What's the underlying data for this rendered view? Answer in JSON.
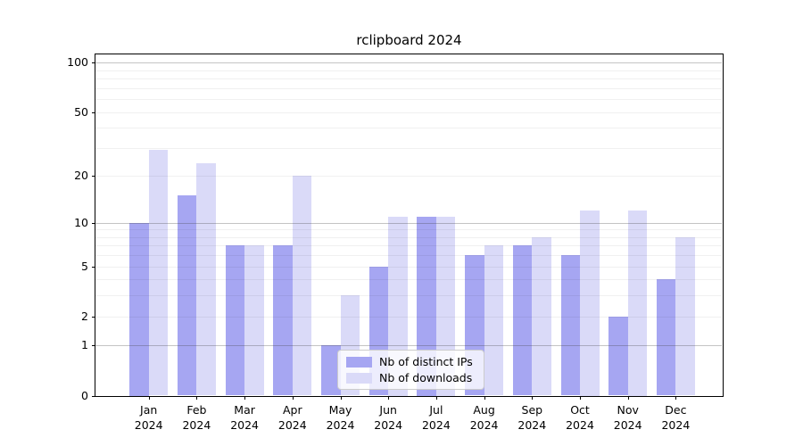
{
  "title": "rclipboard 2024",
  "chart_data": {
    "type": "bar",
    "title": "rclipboard 2024",
    "categories": [
      "Jan",
      "Feb",
      "Mar",
      "Apr",
      "May",
      "Jun",
      "Jul",
      "Aug",
      "Sep",
      "Oct",
      "Nov",
      "Dec"
    ],
    "x_year_label": "2024",
    "series": [
      {
        "name": "Nb of distinct IPs",
        "color": "#a6a6f2",
        "values": [
          10,
          15,
          7,
          7,
          1,
          5,
          11,
          6,
          7,
          6,
          2,
          4
        ]
      },
      {
        "name": "Nb of downloads",
        "color": "#dadaf8",
        "values": [
          29,
          24,
          7,
          20,
          3,
          11,
          11,
          7,
          8,
          12,
          12,
          8
        ]
      }
    ],
    "y_axis": {
      "scale": "log1p",
      "tick_labels": [
        "0",
        "1",
        "2",
        "5",
        "10",
        "20",
        "50",
        "100"
      ],
      "tick_values": [
        0,
        1,
        2,
        5,
        10,
        20,
        50,
        100
      ],
      "max_tick": 100
    },
    "grid": {
      "on": true,
      "major_values": [
        1,
        10,
        100
      ],
      "minor_values": [
        2,
        3,
        4,
        5,
        6,
        7,
        8,
        9,
        20,
        30,
        40,
        50,
        60,
        70,
        80,
        90
      ]
    },
    "legend": {
      "position": "lower center",
      "entries": [
        "Nb of distinct IPs",
        "Nb of downloads"
      ]
    }
  }
}
